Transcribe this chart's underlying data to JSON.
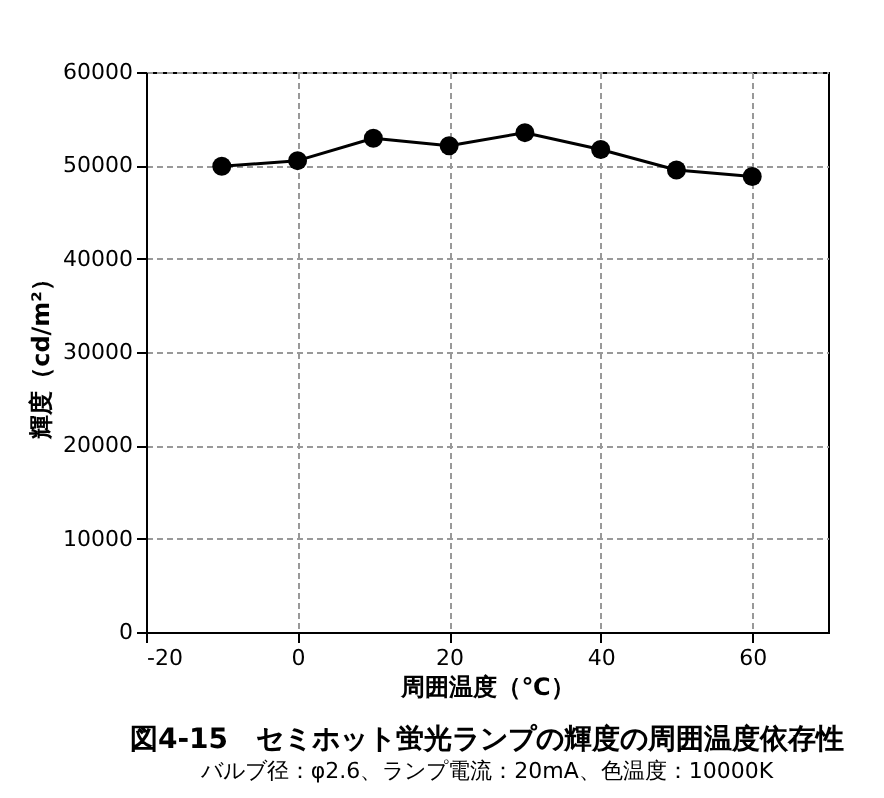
{
  "chart_data": {
    "type": "line",
    "title": "図4-15　セミホット蛍光ランプの輝度の周囲温度依存性",
    "subtitle": "バルブ径：φ2.6、ランプ電流：20mA、色温度：10000K",
    "xlabel": "周囲温度（℃）",
    "ylabel": "輝度（cd/m²）",
    "x": [
      -10,
      0,
      10,
      20,
      30,
      40,
      50,
      60
    ],
    "series": [
      {
        "color": "#000000",
        "values": [
          49900,
          50500,
          52900,
          52100,
          53500,
          51700,
          49500,
          48800
        ]
      }
    ],
    "xlim": [
      -20,
      70
    ],
    "xticks": [
      -20,
      0,
      20,
      40,
      60
    ],
    "ylim": [
      0,
      60000
    ],
    "yticks": [
      0,
      10000,
      20000,
      30000,
      40000,
      50000,
      60000
    ],
    "grid": true,
    "marker": "circle",
    "line_style": "solid",
    "legend": false
  }
}
